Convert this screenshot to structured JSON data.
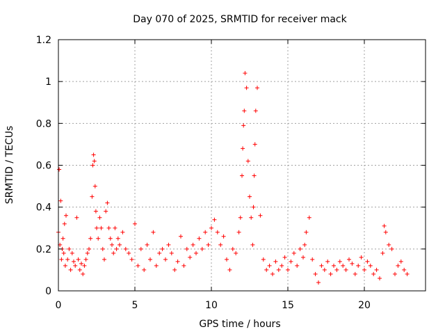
{
  "chart_data": {
    "type": "scatter",
    "title": "Day 070 of 2025, SRMTID for receiver mack",
    "xlabel": "GPS time / hours",
    "ylabel": "SRMTID / TECUs",
    "xlim": [
      0,
      24
    ],
    "ylim": [
      0,
      1.2
    ],
    "xticks": [
      {
        "value": 0,
        "label": "0"
      },
      {
        "value": 5,
        "label": "5"
      },
      {
        "value": 10,
        "label": "10"
      },
      {
        "value": 15,
        "label": "15"
      },
      {
        "value": 20,
        "label": "20"
      }
    ],
    "yticks": [
      {
        "value": 0,
        "label": "0"
      },
      {
        "value": 0.2,
        "label": "0.2"
      },
      {
        "value": 0.4,
        "label": "0.4"
      },
      {
        "value": 0.6,
        "label": "0.6"
      },
      {
        "value": 0.8,
        "label": "0.8"
      },
      {
        "value": 1.0,
        "label": "1"
      },
      {
        "value": 1.2,
        "label": "1.2"
      }
    ],
    "grid": true,
    "marker": "+",
    "color": "#ff0000",
    "series": [
      {
        "name": "SRMTID",
        "x": [
          0.0,
          0.05,
          0.1,
          0.15,
          0.2,
          0.25,
          0.3,
          0.35,
          0.4,
          0.45,
          0.5,
          0.6,
          0.7,
          0.8,
          0.9,
          1.0,
          1.1,
          1.2,
          1.3,
          1.4,
          1.5,
          1.6,
          1.7,
          1.8,
          1.9,
          2.0,
          2.1,
          2.2,
          2.25,
          2.3,
          2.35,
          2.4,
          2.45,
          2.5,
          2.6,
          2.7,
          2.8,
          2.9,
          3.0,
          3.1,
          3.2,
          3.3,
          3.4,
          3.5,
          3.6,
          3.7,
          3.8,
          3.9,
          4.0,
          4.2,
          4.4,
          4.6,
          4.8,
          5.0,
          5.2,
          5.4,
          5.6,
          5.8,
          6.0,
          6.2,
          6.4,
          6.6,
          6.8,
          7.0,
          7.2,
          7.4,
          7.6,
          7.8,
          8.0,
          8.2,
          8.4,
          8.6,
          8.8,
          9.0,
          9.2,
          9.4,
          9.6,
          9.8,
          10.0,
          10.2,
          10.4,
          10.6,
          10.8,
          11.0,
          11.2,
          11.4,
          11.6,
          11.8,
          11.9,
          12.0,
          12.05,
          12.1,
          12.15,
          12.2,
          12.3,
          12.4,
          12.5,
          12.6,
          12.7,
          12.75,
          12.8,
          12.85,
          12.9,
          13.0,
          13.2,
          13.4,
          13.6,
          13.8,
          14.0,
          14.2,
          14.4,
          14.6,
          14.8,
          15.0,
          15.2,
          15.4,
          15.6,
          15.8,
          16.0,
          16.1,
          16.2,
          16.4,
          16.6,
          16.8,
          17.0,
          17.2,
          17.4,
          17.6,
          17.8,
          18.0,
          18.2,
          18.4,
          18.6,
          18.8,
          19.0,
          19.2,
          19.4,
          19.6,
          19.8,
          20.0,
          20.2,
          20.4,
          20.6,
          20.8,
          21.0,
          21.2,
          21.3,
          21.4,
          21.6,
          21.8,
          22.0,
          22.2,
          22.4,
          22.6,
          22.8
        ],
        "y": [
          0.28,
          0.58,
          0.22,
          0.43,
          0.15,
          0.2,
          0.25,
          0.18,
          0.32,
          0.12,
          0.36,
          0.15,
          0.2,
          0.1,
          0.18,
          0.14,
          0.12,
          0.35,
          0.15,
          0.1,
          0.13,
          0.08,
          0.12,
          0.15,
          0.18,
          0.2,
          0.25,
          0.45,
          0.6,
          0.65,
          0.62,
          0.5,
          0.38,
          0.3,
          0.25,
          0.35,
          0.3,
          0.2,
          0.15,
          0.38,
          0.42,
          0.3,
          0.25,
          0.22,
          0.18,
          0.3,
          0.2,
          0.25,
          0.22,
          0.28,
          0.2,
          0.18,
          0.15,
          0.32,
          0.12,
          0.2,
          0.1,
          0.22,
          0.15,
          0.28,
          0.12,
          0.18,
          0.2,
          0.15,
          0.22,
          0.18,
          0.1,
          0.14,
          0.26,
          0.12,
          0.2,
          0.16,
          0.22,
          0.18,
          0.25,
          0.2,
          0.28,
          0.22,
          0.3,
          0.34,
          0.28,
          0.22,
          0.26,
          0.15,
          0.1,
          0.2,
          0.18,
          0.28,
          0.35,
          0.55,
          0.68,
          0.79,
          0.86,
          1.04,
          0.97,
          0.62,
          0.45,
          0.35,
          0.22,
          0.4,
          0.55,
          0.7,
          0.86,
          0.97,
          0.36,
          0.15,
          0.1,
          0.12,
          0.08,
          0.14,
          0.1,
          0.12,
          0.16,
          0.1,
          0.14,
          0.18,
          0.12,
          0.2,
          0.16,
          0.22,
          0.28,
          0.35,
          0.15,
          0.08,
          0.04,
          0.12,
          0.1,
          0.14,
          0.08,
          0.12,
          0.1,
          0.14,
          0.12,
          0.1,
          0.15,
          0.13,
          0.08,
          0.12,
          0.16,
          0.1,
          0.14,
          0.12,
          0.08,
          0.1,
          0.06,
          0.18,
          0.31,
          0.28,
          0.22,
          0.2,
          0.08,
          0.12,
          0.14,
          0.1,
          0.08
        ]
      }
    ]
  }
}
